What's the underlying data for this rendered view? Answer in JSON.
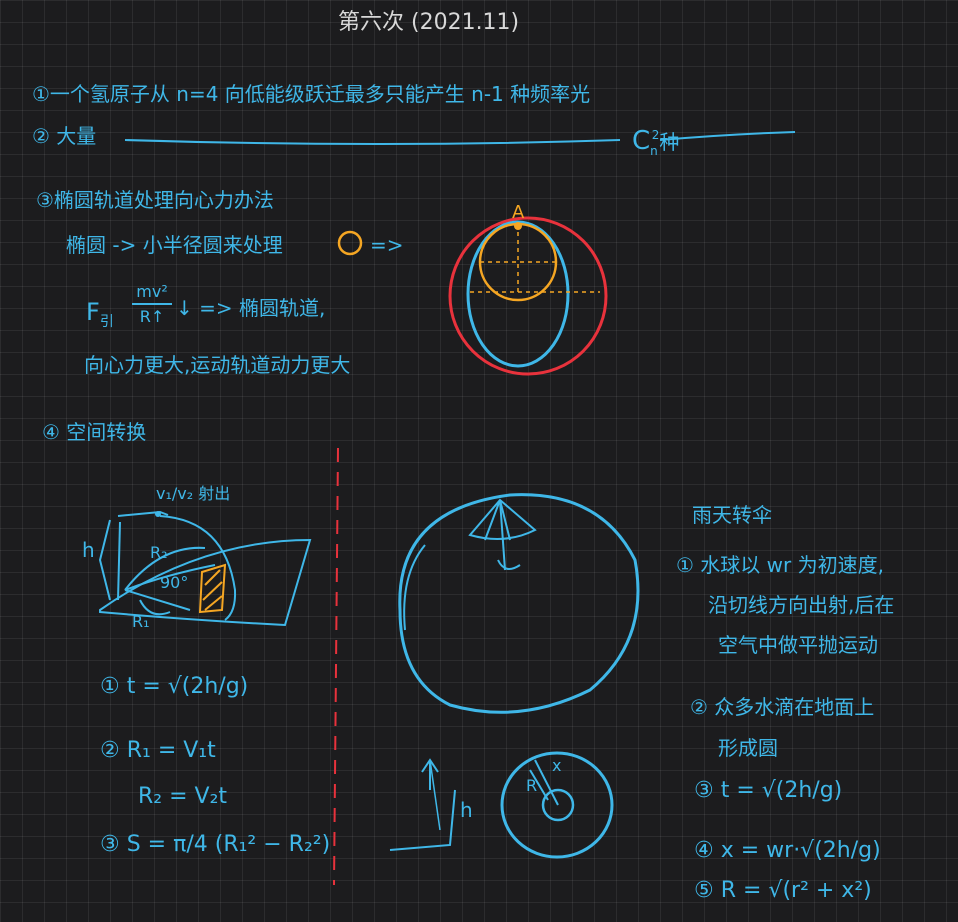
{
  "title": "第六次 (2021.11)",
  "item1": "①一个氢原子从 n=4 向低能级跃迁最多只能产生 n-1 种频率光",
  "item2_label": "② 大量",
  "item2_result": "C",
  "item2_sub": "n",
  "item2_sup": "2",
  "item2_suffix": "种",
  "item3_title": "③椭圆轨道处理向心力办法",
  "item3_line1": "椭圆 -> 小半径圆来处理",
  "item3_line2_prefix": "F",
  "item3_line2_sub": "引",
  "item3_frac_num": "mv²",
  "item3_frac_den": "R↑",
  "item3_line2_suffix": "↓ => 椭圆轨道,",
  "item3_line3": "向心力更大,运动轨道动力更大",
  "ellipse_label_a": "A",
  "item4_title": "④ 空间转换",
  "sketch_velocity_label": "v₁/v₂ 射出",
  "sketch_h": "h",
  "sketch_r2": "R₂",
  "sketch_angle": "90°",
  "sketch_r1": "R₁",
  "eq1": "① t = √(2h/g)",
  "eq2": "② R₁ = V₁t",
  "eq2b": "R₂ = V₂t",
  "eq3": "③ S = π/4 (R₁² − R₂²)",
  "umbrella_title": "雨天转伞",
  "umbrella_point1_l1": "① 水球以 wr 为初速度,",
  "umbrella_point1_l2": "沿切线方向出射,后在",
  "umbrella_point1_l3": "空气中做平抛运动",
  "umbrella_point2_l1": "② 众多水滴在地面上",
  "umbrella_point2_l2": "形成圆",
  "umbrella_eq3": "③ t = √(2h/g)",
  "umbrella_eq4": "④ x = wr·√(2h/g)",
  "umbrella_eq5": "⑤ R = √(r² + x²)",
  "bottom_h": "h",
  "circle_label_r": "R",
  "circle_label_x": "x",
  "colors": {
    "blue": "#3fb7e8",
    "red": "#e8323c",
    "orange": "#f5a623",
    "gray": "#d8d8d8"
  }
}
